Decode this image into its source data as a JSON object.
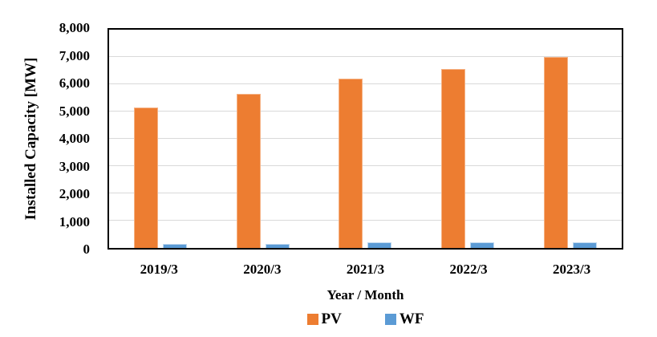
{
  "chart_data": {
    "type": "bar",
    "categories": [
      "2019/3",
      "2020/3",
      "2021/3",
      "2022/3",
      "2023/3"
    ],
    "series": [
      {
        "name": "PV",
        "color": "#ED7D31",
        "border_color": "#F5B183",
        "values": [
          5150,
          5650,
          6200,
          6550,
          7000
        ]
      },
      {
        "name": "WF",
        "color": "#5B9BD5",
        "border_color": "#BDD7EE",
        "values": [
          150,
          160,
          200,
          210,
          220
        ]
      }
    ],
    "xlabel": "Year / Month",
    "ylabel": "Installed Capacity [MW]",
    "ylim": [
      0,
      8000
    ],
    "ytick_interval": 1000,
    "ytick_labels": [
      "8,000",
      "7,000",
      "6,000",
      "5,000",
      "4,000",
      "3,000",
      "2,000",
      "1,000",
      "0"
    ],
    "grid": "horizontal",
    "gridline_color": "#D9D9D9",
    "axis_border_color": "#000000",
    "legend_position": "bottom-center"
  }
}
